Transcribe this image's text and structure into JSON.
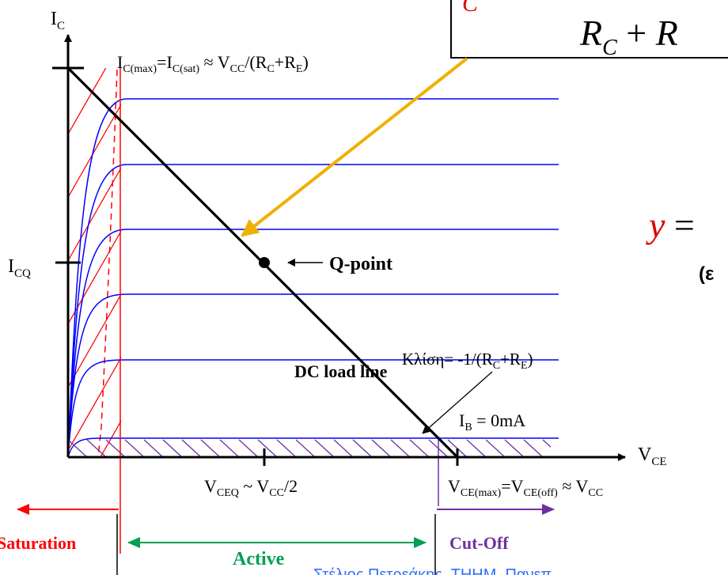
{
  "axes": {
    "y_label": {
      "main": "I",
      "sub": "C"
    },
    "x_label": {
      "main": "V",
      "sub": "CE"
    },
    "icq_label": {
      "main": "I",
      "sub": "CQ"
    }
  },
  "formula_box": {
    "partial_top_left": "C",
    "denominator": {
      "r1": "R",
      "r1_sub": "C",
      "plus": " + ",
      "r2": "R"
    }
  },
  "equation_fragment": {
    "y": "y",
    "equals": " ="
  },
  "greek_fragment": "(ε",
  "saturation_current": {
    "p1": "I",
    "s1": "C(max)",
    "p2": "=I",
    "s2": "C(sat)",
    "p3": " ≈ V",
    "s3": "CC",
    "p4": "/(R",
    "s4": "C",
    "p5": "+R",
    "s5": "E",
    "p6": ")"
  },
  "q_point_label": "Q-point",
  "load_line_label": "DC load line",
  "slope_label": {
    "p1": "Κλίση= -1/(R",
    "s1": "C",
    "p2": "+R",
    "s2": "E",
    "p3": ")"
  },
  "ib_zero_label": {
    "p1": "I",
    "s1": "B",
    "p2": " = 0mA"
  },
  "vceq_label": {
    "p1": "V",
    "s1": "CEQ",
    "p2": " ~ V",
    "s2": "CC",
    "p3": "/2"
  },
  "vce_max_label": {
    "p1": "V",
    "s1": "CE(max)",
    "p2": "=V",
    "s2": "CE(off)",
    "p3": " ≈ V",
    "s3": "CC"
  },
  "regions": {
    "saturation": "Saturation",
    "active": "Active",
    "cutoff": "Cut-Off"
  },
  "footer_text": "Στέλιος Πετρεάκης, ΤΗΗΜ, Πανεπ",
  "colors": {
    "axis": "#000000",
    "curves": "#0000ff",
    "saturation": "#ff0000",
    "active": "#00a050",
    "cutoff": "#7030a0",
    "hatch_cutoff": "#7030a0",
    "arrow_callout": "#f0b000",
    "equation_y": "#e00000",
    "footer": "#3070ff"
  },
  "chart_data": {
    "type": "line",
    "title": "",
    "x_axis": "V_CE",
    "y_axis": "I_C",
    "series": [
      {
        "name": "I_B = 0mA",
        "kind": "collector-curve"
      },
      {
        "kind": "collector-curve"
      },
      {
        "kind": "collector-curve"
      },
      {
        "kind": "collector-curve"
      },
      {
        "kind": "collector-curve"
      },
      {
        "kind": "collector-curve"
      }
    ],
    "load_line": {
      "from": "I_C(sat) at V_CE = 0",
      "to": "V_CE(off) at I_C = 0"
    },
    "q_point": {
      "x": "V_CEQ",
      "y": "I_CQ"
    },
    "regions": [
      "Saturation",
      "Active",
      "Cut-Off"
    ]
  }
}
